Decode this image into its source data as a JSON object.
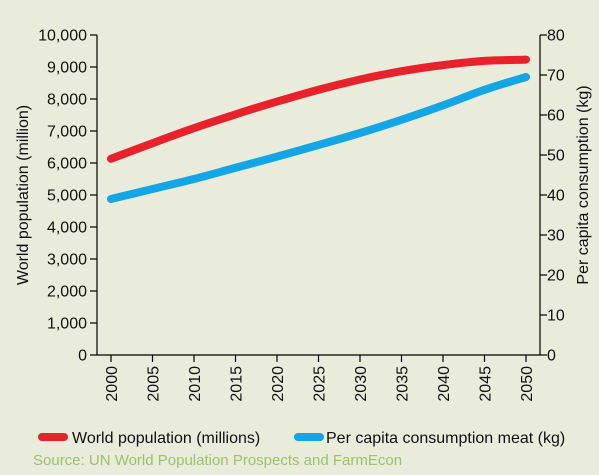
{
  "chart_data": {
    "type": "line",
    "x": [
      2000,
      2005,
      2010,
      2015,
      2020,
      2025,
      2030,
      2035,
      2040,
      2045,
      2050
    ],
    "xticks": [
      "2000",
      "2005",
      "2010",
      "2015",
      "2020",
      "2025",
      "2030",
      "2035",
      "2040",
      "2045",
      "2050"
    ],
    "ylabel_left": "World population (million)",
    "ylabel_right": "Per capita consumption (kg)",
    "ylim_left": [
      0,
      10000
    ],
    "ylim_right": [
      0,
      80
    ],
    "yticks_left": [
      "0",
      "1,000",
      "2,000",
      "3,000",
      "4,000",
      "5,000",
      "6,000",
      "7,000",
      "8,000",
      "9,000",
      "10,000"
    ],
    "yticks_right": [
      "0",
      "10",
      "20",
      "30",
      "40",
      "50",
      "60",
      "70",
      "80"
    ],
    "grid": false,
    "legend_position": "bottom",
    "series": [
      {
        "name": "World population (millions)",
        "axis": "left",
        "color": "#e8222b",
        "x": [
          2000,
          2005,
          2010,
          2015,
          2020,
          2025,
          2030,
          2035,
          2040,
          2045,
          2050
        ],
        "values": [
          6130,
          6620,
          7090,
          7520,
          7920,
          8290,
          8610,
          8870,
          9060,
          9190,
          9230
        ]
      },
      {
        "name": "Per capita consumption meat (kg)",
        "axis": "right",
        "color": "#12a6e6",
        "x": [
          2000,
          2005,
          2010,
          2015,
          2020,
          2025,
          2030,
          2035,
          2040,
          2045,
          2050
        ],
        "values": [
          39,
          41.5,
          44,
          46.8,
          49.6,
          52.5,
          55.5,
          58.8,
          62.4,
          66.3,
          69.5
        ]
      }
    ]
  },
  "source": "Source: UN World Population Prospects and FarmEcon",
  "colors": {
    "background": "#e9ecdb",
    "source_text": "#9bc26a",
    "axis": "#000000"
  }
}
